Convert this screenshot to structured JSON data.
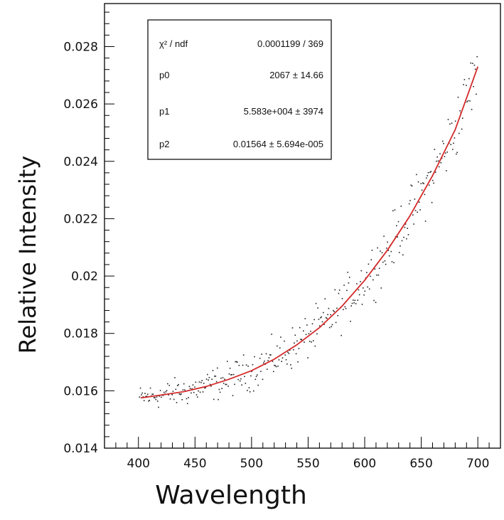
{
  "chart_data": {
    "type": "scatter",
    "title": "",
    "xlabel": "Wavelength",
    "ylabel": "Relative Intensity",
    "xlim": [
      370,
      720
    ],
    "ylim": [
      0.014,
      0.0295
    ],
    "x_ticks": [
      400,
      450,
      500,
      550,
      600,
      650,
      700
    ],
    "x_tick_labels": [
      "400",
      "450",
      "500",
      "550",
      "600",
      "650",
      "700"
    ],
    "y_ticks": [
      0.014,
      0.016,
      0.018,
      0.02,
      0.022,
      0.024,
      0.026,
      0.028
    ],
    "y_tick_labels": [
      "0.014",
      "0.016",
      "0.018",
      "0.02",
      "0.022",
      "0.024",
      "0.026",
      "0.028"
    ],
    "grid": false,
    "data_color": "#222222",
    "fit_color": "#d42a2a",
    "fit_points": [
      [
        402,
        0.01575
      ],
      [
        420,
        0.01585
      ],
      [
        440,
        0.01597
      ],
      [
        460,
        0.01615
      ],
      [
        480,
        0.0164
      ],
      [
        500,
        0.0167
      ],
      [
        520,
        0.0171
      ],
      [
        540,
        0.0176
      ],
      [
        560,
        0.0182
      ],
      [
        580,
        0.01895
      ],
      [
        600,
        0.01985
      ],
      [
        620,
        0.0209
      ],
      [
        640,
        0.0221
      ],
      [
        660,
        0.0235
      ],
      [
        680,
        0.0251
      ],
      [
        700,
        0.0273
      ]
    ],
    "stats_box": {
      "rows": [
        {
          "label": "χ² / ndf",
          "value": "0.0001199 / 369"
        },
        {
          "label": "p0",
          "value": "2067 ± 14.66"
        },
        {
          "label": "p1",
          "value": "5.583e+004 ±  3974"
        },
        {
          "label": "p2",
          "value": "0.01564 ± 5.694e-005"
        }
      ]
    }
  }
}
